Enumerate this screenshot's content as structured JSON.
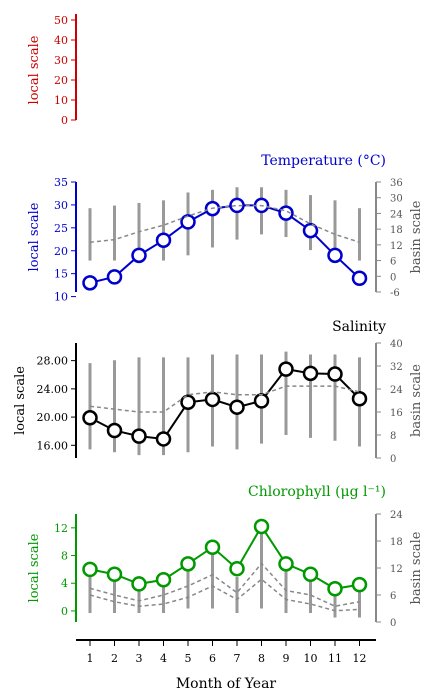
{
  "chart_data": [
    {
      "type": "line",
      "title": "",
      "ylabel": "local scale",
      "ylim": [
        0,
        50
      ],
      "yticks": [
        0,
        10,
        20,
        30,
        40,
        50
      ],
      "color": "#cc0000",
      "series": []
    },
    {
      "type": "line",
      "title": "Temperature (°C)",
      "ylabel": "local scale",
      "ylabel_right": "basin scale",
      "color": "#0000cc",
      "ylim": [
        11,
        35
      ],
      "yticks": [
        10,
        15,
        20,
        25,
        30,
        35
      ],
      "ylim_right": [
        -6,
        36
      ],
      "yticks_right": [
        -6,
        0,
        6,
        12,
        18,
        24,
        30,
        36
      ],
      "x": [
        1,
        2,
        3,
        4,
        5,
        6,
        7,
        8,
        9,
        10,
        11,
        12
      ],
      "series": [
        {
          "values": [
            13.0,
            14.3,
            19.0,
            22.3,
            26.3,
            29.2,
            29.9,
            29.9,
            28.2,
            24.4,
            19.0,
            14.0
          ],
          "axis": "left"
        },
        {
          "values": [
            13,
            14,
            17,
            19.5,
            23,
            26,
            27,
            27,
            25,
            20,
            16,
            13
          ],
          "axis": "right",
          "style": "dashed"
        }
      ],
      "ranges_right": [
        [
          6,
          26
        ],
        [
          6,
          27
        ],
        [
          5,
          28
        ],
        [
          6,
          29
        ],
        [
          8,
          32
        ],
        [
          11,
          33
        ],
        [
          14,
          34
        ],
        [
          16,
          34
        ],
        [
          15,
          33
        ],
        [
          10,
          31
        ],
        [
          7,
          29
        ],
        [
          6,
          26
        ]
      ]
    },
    {
      "type": "line",
      "title": "Salinity",
      "ylabel": "local scale",
      "ylabel_right": "basin scale",
      "color": "#000000",
      "ylim": [
        14.2,
        30.5
      ],
      "yticks": [
        "16.00",
        "20.00",
        "24.00",
        "28.00"
      ],
      "ylim_right": [
        0,
        40
      ],
      "yticks_right": [
        0,
        8,
        16,
        24,
        32,
        40
      ],
      "x": [
        1,
        2,
        3,
        4,
        5,
        6,
        7,
        8,
        9,
        10,
        11,
        12
      ],
      "series": [
        {
          "values": [
            19.9,
            18.1,
            17.3,
            16.9,
            22.1,
            22.5,
            21.4,
            22.3,
            26.8,
            26.2,
            26.1,
            22.6
          ],
          "axis": "left"
        },
        {
          "values": [
            18,
            17,
            16,
            16,
            22,
            23,
            22,
            22,
            25,
            25,
            25,
            23
          ],
          "axis": "right",
          "style": "dashed"
        }
      ],
      "ranges_right": [
        [
          3,
          33
        ],
        [
          2,
          34
        ],
        [
          1,
          35
        ],
        [
          1,
          35
        ],
        [
          2,
          35
        ],
        [
          4,
          36
        ],
        [
          3,
          36
        ],
        [
          5,
          36
        ],
        [
          8,
          37
        ],
        [
          7,
          36
        ],
        [
          6,
          36
        ],
        [
          4,
          35
        ]
      ]
    },
    {
      "type": "line",
      "title": "Chlorophyll (μg l⁻¹)",
      "ylabel": "local scale",
      "ylabel_right": "basin scale",
      "color": "#009900",
      "ylim": [
        -1.6,
        14
      ],
      "yticks": [
        0,
        4,
        8,
        12
      ],
      "ylim_right": [
        0,
        24
      ],
      "yticks_right": [
        0,
        6,
        12,
        18,
        24
      ],
      "x": [
        1,
        2,
        3,
        4,
        5,
        6,
        7,
        8,
        9,
        10,
        11,
        12
      ],
      "series": [
        {
          "values": [
            6.0,
            5.3,
            3.9,
            4.5,
            6.8,
            9.2,
            6.1,
            12.2,
            6.8,
            5.3,
            3.2,
            3.8
          ],
          "axis": "left"
        },
        {
          "values": [
            7.5,
            6.0,
            4.7,
            6.0,
            8.0,
            10.5,
            6.5,
            13.0,
            7.0,
            6.0,
            3.5,
            4.5
          ],
          "axis": "right",
          "style": "dashed"
        },
        {
          "values": [
            6.0,
            4.5,
            3.5,
            4.0,
            5.5,
            8.0,
            5.0,
            9.5,
            5.0,
            4.0,
            2.5,
            2.8
          ],
          "axis": "right",
          "style": "dashed"
        }
      ],
      "ranges_right": [
        [
          2,
          10
        ],
        [
          2,
          9
        ],
        [
          2,
          8
        ],
        [
          2,
          9
        ],
        [
          3,
          12
        ],
        [
          3,
          17
        ],
        [
          2,
          10
        ],
        [
          3,
          21
        ],
        [
          2,
          14
        ],
        [
          2,
          11
        ],
        [
          1,
          7
        ],
        [
          1,
          8
        ]
      ]
    }
  ],
  "xaxis": {
    "label": "Month of Year",
    "ticks": [
      "1",
      "2",
      "3",
      "4",
      "5",
      "6",
      "7",
      "8",
      "9",
      "10",
      "11",
      "12"
    ]
  }
}
